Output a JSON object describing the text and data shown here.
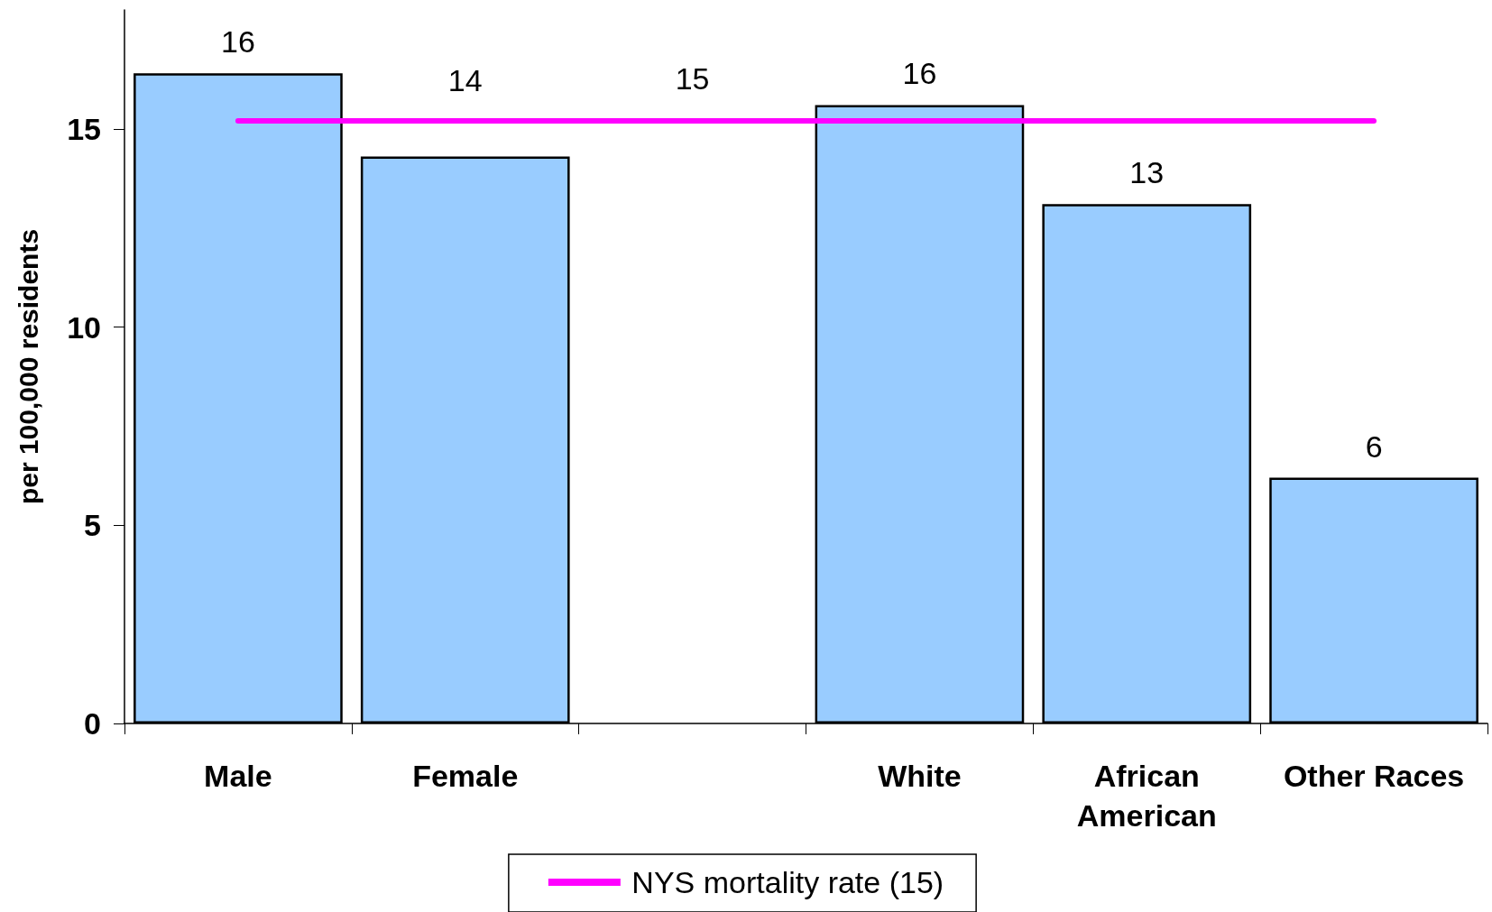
{
  "chart_data": {
    "type": "bar",
    "categories": [
      "Male",
      "Female",
      null,
      "White",
      "African\nAmerican",
      "Other Races"
    ],
    "ylabel": "per 100,000 residents",
    "series": [
      {
        "color": "#99ccff",
        "values": [
          16.4,
          14.3,
          null,
          15.6,
          13.1,
          6.2
        ],
        "value_labels": [
          "16",
          "14",
          null,
          "16",
          "13",
          "6"
        ]
      },
      {
        "type": "line",
        "name": "NYS mortality rate (15)",
        "color": "#ff00ff",
        "marker": "none",
        "line_style": "solid",
        "values": [
          15.2,
          15.2,
          15.2,
          15.2,
          15.2,
          15.2
        ],
        "value_labels": [
          null,
          null,
          "15",
          null,
          null,
          null
        ]
      }
    ],
    "ylim": [
      0,
      18
    ],
    "yticks": [
      0,
      5,
      10,
      15
    ],
    "grid": false,
    "legend": "bottom"
  }
}
